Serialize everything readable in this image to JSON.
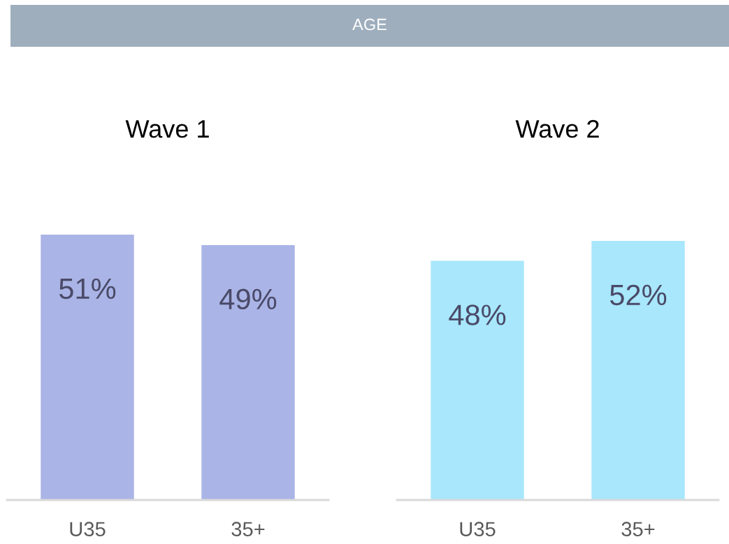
{
  "chart_data": [
    {
      "type": "other",
      "title": "AGE",
      "color": "#9eaebd"
    },
    {
      "type": "bar",
      "title": "Wave 1",
      "categories": [
        "U35",
        "35+"
      ],
      "values": [
        51,
        49
      ],
      "value_labels": [
        "51%",
        "49%"
      ],
      "color": "#aab4e6",
      "tick_labels": "x"
    },
    {
      "type": "bar",
      "title": "Wave 2",
      "categories": [
        "U35",
        "35+"
      ],
      "values": [
        48,
        52
      ],
      "value_labels": [
        "48%",
        "52%"
      ],
      "color": "#a8e7fc",
      "tick_labels": "x"
    }
  ]
}
